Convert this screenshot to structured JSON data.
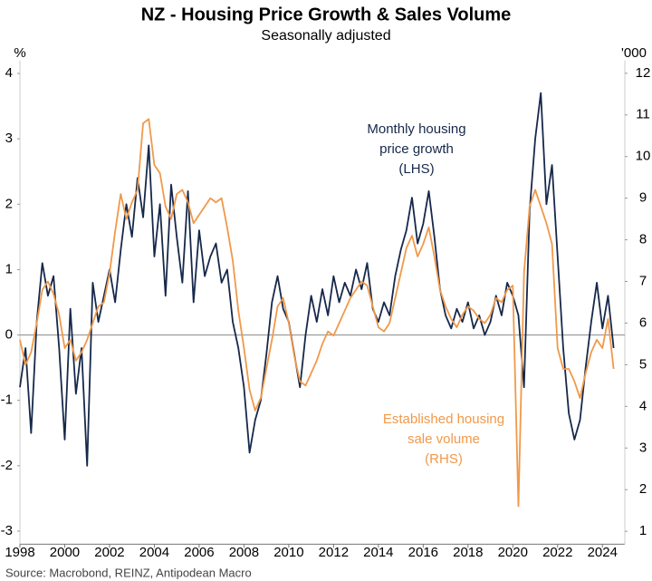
{
  "chart_data": {
    "type": "line",
    "title": "NZ - Housing Price Growth & Sales Volume",
    "subtitle": "Seasonally adjusted",
    "y_unit": "%",
    "y2_unit": "'000",
    "source": "Source: Macrobond, REINZ, Antipodean Macro",
    "x": [
      1998,
      1998.25,
      1998.5,
      1998.75,
      1999,
      1999.25,
      1999.5,
      1999.75,
      2000,
      2000.25,
      2000.5,
      2000.75,
      2001,
      2001.25,
      2001.5,
      2001.75,
      2002,
      2002.25,
      2002.5,
      2002.75,
      2003,
      2003.25,
      2003.5,
      2003.75,
      2004,
      2004.25,
      2004.5,
      2004.75,
      2005,
      2005.25,
      2005.5,
      2005.75,
      2006,
      2006.25,
      2006.5,
      2006.75,
      2007,
      2007.25,
      2007.5,
      2007.75,
      2008,
      2008.25,
      2008.5,
      2008.75,
      2009,
      2009.25,
      2009.5,
      2009.75,
      2010,
      2010.25,
      2010.5,
      2010.75,
      2011,
      2011.25,
      2011.5,
      2011.75,
      2012,
      2012.25,
      2012.5,
      2012.75,
      2013,
      2013.25,
      2013.5,
      2013.75,
      2014,
      2014.25,
      2014.5,
      2014.75,
      2015,
      2015.25,
      2015.5,
      2015.75,
      2016,
      2016.25,
      2016.5,
      2016.75,
      2017,
      2017.25,
      2017.5,
      2017.75,
      2018,
      2018.25,
      2018.5,
      2018.75,
      2019,
      2019.25,
      2019.5,
      2019.75,
      2020,
      2020.25,
      2020.5,
      2020.75,
      2021,
      2021.25,
      2021.5,
      2021.75,
      2022,
      2022.25,
      2022.5,
      2022.75,
      2023,
      2023.25,
      2023.5,
      2023.75,
      2024,
      2024.25,
      2024.5
    ],
    "series": [
      {
        "annotation": [
          "Monthly housing",
          "price growth",
          "(LHS)"
        ],
        "color": "#16284a",
        "axis": "y",
        "values": [
          -0.8,
          -0.2,
          -1.5,
          0.2,
          1.1,
          0.6,
          0.9,
          -0.2,
          -1.6,
          0.4,
          -0.9,
          -0.2,
          -2.0,
          0.8,
          0.2,
          0.6,
          1.0,
          0.5,
          1.3,
          2.0,
          1.5,
          2.4,
          1.8,
          2.9,
          1.2,
          2.0,
          0.6,
          2.3,
          1.5,
          0.8,
          2.2,
          0.5,
          1.6,
          0.9,
          1.2,
          1.4,
          0.8,
          1.0,
          0.2,
          -0.2,
          -0.8,
          -1.8,
          -1.3,
          -1.0,
          -0.3,
          0.5,
          0.9,
          0.4,
          0.2,
          -0.3,
          -0.8,
          0.0,
          0.6,
          0.2,
          0.7,
          0.3,
          0.9,
          0.5,
          0.8,
          0.6,
          1.0,
          0.7,
          1.1,
          0.4,
          0.2,
          0.5,
          0.3,
          0.9,
          1.3,
          1.6,
          2.1,
          1.4,
          1.7,
          2.2,
          1.5,
          0.7,
          0.3,
          0.1,
          0.4,
          0.2,
          0.5,
          0.1,
          0.3,
          0.0,
          0.2,
          0.6,
          0.3,
          0.8,
          0.6,
          0.3,
          -0.8,
          1.9,
          3.0,
          3.7,
          2.0,
          2.6,
          1.2,
          -0.2,
          -1.2,
          -1.6,
          -1.3,
          -0.5,
          0.2,
          0.8,
          0.1,
          0.6,
          -0.2
        ]
      },
      {
        "annotation": [
          "Established housing",
          "sale volume",
          "(RHS)"
        ],
        "color": "#f0994a",
        "axis": "y2",
        "values": [
          5.6,
          5.0,
          5.3,
          6.0,
          6.8,
          7.0,
          6.7,
          6.2,
          5.4,
          5.6,
          5.1,
          5.3,
          5.6,
          6.0,
          6.4,
          6.5,
          7.2,
          8.2,
          9.1,
          8.5,
          8.9,
          9.2,
          10.8,
          10.9,
          9.8,
          9.6,
          8.8,
          8.5,
          9.1,
          9.2,
          8.9,
          8.4,
          8.6,
          8.8,
          9.0,
          8.9,
          9.0,
          8.3,
          7.5,
          6.3,
          5.4,
          4.4,
          3.9,
          4.2,
          4.9,
          5.6,
          6.4,
          6.6,
          6.0,
          5.2,
          4.6,
          4.5,
          4.8,
          5.1,
          5.5,
          5.8,
          5.7,
          6.0,
          6.3,
          6.6,
          6.8,
          7.0,
          6.9,
          6.4,
          5.9,
          5.8,
          6.0,
          6.6,
          7.2,
          7.8,
          8.1,
          7.6,
          7.9,
          8.3,
          7.6,
          6.8,
          6.4,
          6.1,
          5.9,
          6.2,
          6.4,
          6.3,
          6.1,
          6.0,
          6.2,
          6.6,
          6.5,
          6.8,
          6.9,
          1.6,
          7.2,
          8.8,
          9.2,
          8.8,
          8.4,
          7.9,
          5.4,
          4.9,
          4.9,
          4.6,
          4.2,
          4.8,
          5.3,
          5.6,
          5.4,
          6.1,
          4.9
        ]
      }
    ],
    "xlim": [
      1998,
      2025
    ],
    "xticks": [
      1998,
      2000,
      2002,
      2004,
      2006,
      2008,
      2010,
      2012,
      2014,
      2016,
      2018,
      2020,
      2022,
      2024
    ],
    "ylim": [
      -3.2,
      4.2
    ],
    "yticks": [
      -3,
      -2,
      -1,
      0,
      1,
      2,
      3,
      4
    ],
    "y2lim": [
      0.69,
      12.31
    ],
    "y2ticks": [
      1,
      2,
      3,
      4,
      5,
      6,
      7,
      8,
      9,
      10,
      11,
      12
    ],
    "zero_line": true
  }
}
